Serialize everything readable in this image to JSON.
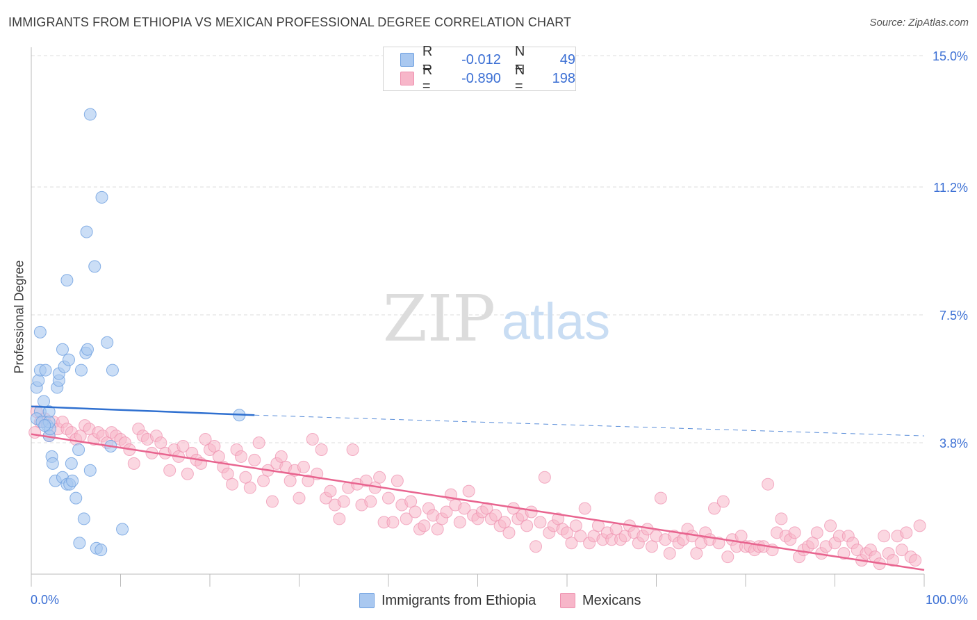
{
  "title": "IMMIGRANTS FROM ETHIOPIA VS MEXICAN PROFESSIONAL DEGREE CORRELATION CHART",
  "source": "Source: ZipAtlas.com",
  "watermark": {
    "zip": "ZIP",
    "atlas": "atlas"
  },
  "legend_top": {
    "r_label": "R =",
    "n_label": "N =",
    "series": [
      {
        "name": "Immigrants from Ethiopia",
        "r": "-0.012",
        "n": "49"
      },
      {
        "name": "Mexicans",
        "r": "-0.890",
        "n": "198"
      }
    ]
  },
  "colors": {
    "ethiopia_fill": "#a9c8f0",
    "ethiopia_stroke": "#6d9fe0",
    "ethiopia_line": "#2f70d0",
    "mexican_fill": "#f7b6c9",
    "mexican_stroke": "#ee8fae",
    "mexican_line": "#e8648f",
    "axis_value": "#3b6fd4",
    "grid": "#dddddd"
  },
  "chart_data": {
    "type": "scatter",
    "title": "IMMIGRANTS FROM ETHIOPIA VS MEXICAN PROFESSIONAL DEGREE CORRELATION CHART",
    "xlabel": "",
    "ylabel": "Professional Degree",
    "xlim": [
      0,
      100
    ],
    "ylim": [
      0,
      15.0
    ],
    "x_tick_labels": [
      "0.0%",
      "100.0%"
    ],
    "y_ticks": [
      3.8,
      7.5,
      11.2,
      15.0
    ],
    "y_tick_labels": [
      "3.8%",
      "7.5%",
      "11.2%",
      "15.0%"
    ],
    "series": [
      {
        "name": "Immigrants from Ethiopia",
        "r": -0.012,
        "n": 49,
        "trend": {
          "x0": 0,
          "y0": 4.85,
          "x1": 25,
          "y1": 4.6,
          "dash_x_end": 100,
          "dash_y_end": 4.0
        },
        "points": [
          [
            1.0,
            4.7
          ],
          [
            0.6,
            5.4
          ],
          [
            0.8,
            5.6
          ],
          [
            1.0,
            5.9
          ],
          [
            1.4,
            5.0
          ],
          [
            1.6,
            5.9
          ],
          [
            1.8,
            4.3
          ],
          [
            2.0,
            4.7
          ],
          [
            2.0,
            4.0
          ],
          [
            2.1,
            4.2
          ],
          [
            2.3,
            3.4
          ],
          [
            2.4,
            3.2
          ],
          [
            2.7,
            2.7
          ],
          [
            2.9,
            5.4
          ],
          [
            3.1,
            5.6
          ],
          [
            3.1,
            5.8
          ],
          [
            3.5,
            6.5
          ],
          [
            3.5,
            2.8
          ],
          [
            3.7,
            6.0
          ],
          [
            4.0,
            2.6
          ],
          [
            4.2,
            6.2
          ],
          [
            4.3,
            2.6
          ],
          [
            4.5,
            3.2
          ],
          [
            4.6,
            2.7
          ],
          [
            5.0,
            2.2
          ],
          [
            5.3,
            3.6
          ],
          [
            5.4,
            0.9
          ],
          [
            5.6,
            5.9
          ],
          [
            5.9,
            1.6
          ],
          [
            6.1,
            6.4
          ],
          [
            6.3,
            6.5
          ],
          [
            6.6,
            3.0
          ],
          [
            7.3,
            0.75
          ],
          [
            7.8,
            0.7
          ],
          [
            8.5,
            6.7
          ],
          [
            8.9,
            3.7
          ],
          [
            9.1,
            5.9
          ],
          [
            10.2,
            1.3
          ],
          [
            1.0,
            7.0
          ],
          [
            4.0,
            8.5
          ],
          [
            6.2,
            9.9
          ],
          [
            7.1,
            8.9
          ],
          [
            7.9,
            10.9
          ],
          [
            6.6,
            13.3
          ],
          [
            0.6,
            4.5
          ],
          [
            1.2,
            4.4
          ],
          [
            2.0,
            4.4
          ],
          [
            1.5,
            4.3
          ],
          [
            23.3,
            4.6
          ]
        ]
      },
      {
        "name": "Mexicans",
        "r": -0.89,
        "n": 198,
        "trend": {
          "x0": 0,
          "y0": 4.05,
          "x1": 100,
          "y1": 0.12
        },
        "points": [
          [
            0.4,
            4.1
          ],
          [
            0.6,
            4.7
          ],
          [
            1.0,
            4.4
          ],
          [
            1.5,
            4.5
          ],
          [
            2.0,
            4.0
          ],
          [
            2.5,
            4.4
          ],
          [
            3.0,
            4.2
          ],
          [
            3.5,
            4.4
          ],
          [
            4.0,
            4.2
          ],
          [
            4.5,
            4.1
          ],
          [
            5.0,
            3.9
          ],
          [
            5.5,
            4.0
          ],
          [
            6.0,
            4.3
          ],
          [
            6.5,
            4.2
          ],
          [
            7.0,
            3.9
          ],
          [
            7.5,
            4.1
          ],
          [
            8.0,
            4.0
          ],
          [
            8.5,
            3.8
          ],
          [
            9.0,
            4.1
          ],
          [
            9.5,
            4.0
          ],
          [
            10.0,
            3.9
          ],
          [
            10.5,
            3.8
          ],
          [
            11.0,
            3.6
          ],
          [
            11.5,
            3.2
          ],
          [
            12.0,
            4.2
          ],
          [
            12.5,
            4.0
          ],
          [
            13.0,
            3.9
          ],
          [
            13.5,
            3.5
          ],
          [
            14.0,
            4.0
          ],
          [
            14.5,
            3.8
          ],
          [
            15.0,
            3.5
          ],
          [
            15.5,
            3.0
          ],
          [
            16.0,
            3.6
          ],
          [
            16.5,
            3.4
          ],
          [
            17.0,
            3.7
          ],
          [
            17.5,
            2.9
          ],
          [
            18.0,
            3.5
          ],
          [
            18.5,
            3.3
          ],
          [
            19.0,
            3.2
          ],
          [
            19.5,
            3.9
          ],
          [
            20.0,
            3.6
          ],
          [
            20.5,
            3.7
          ],
          [
            21.0,
            3.4
          ],
          [
            21.5,
            3.1
          ],
          [
            22.0,
            2.9
          ],
          [
            22.5,
            2.6
          ],
          [
            23.0,
            3.6
          ],
          [
            23.5,
            3.4
          ],
          [
            24.0,
            2.8
          ],
          [
            24.5,
            2.5
          ],
          [
            25.0,
            3.3
          ],
          [
            25.5,
            3.8
          ],
          [
            26.0,
            2.7
          ],
          [
            26.5,
            3.0
          ],
          [
            27.0,
            2.1
          ],
          [
            27.5,
            3.2
          ],
          [
            28.0,
            3.4
          ],
          [
            28.5,
            3.1
          ],
          [
            29.0,
            2.7
          ],
          [
            29.5,
            3.0
          ],
          [
            30.0,
            2.2
          ],
          [
            30.5,
            3.1
          ],
          [
            31.0,
            2.7
          ],
          [
            31.5,
            3.9
          ],
          [
            32.0,
            2.9
          ],
          [
            32.5,
            3.6
          ],
          [
            33.0,
            2.2
          ],
          [
            33.5,
            2.4
          ],
          [
            34.0,
            2.0
          ],
          [
            34.5,
            1.6
          ],
          [
            35.0,
            2.1
          ],
          [
            35.5,
            2.5
          ],
          [
            36.0,
            3.6
          ],
          [
            36.5,
            2.6
          ],
          [
            37.0,
            2.0
          ],
          [
            37.5,
            2.7
          ],
          [
            38.0,
            2.1
          ],
          [
            38.5,
            2.5
          ],
          [
            39.0,
            2.8
          ],
          [
            39.5,
            1.5
          ],
          [
            40.0,
            2.2
          ],
          [
            40.5,
            1.5
          ],
          [
            41.0,
            2.7
          ],
          [
            41.5,
            2.0
          ],
          [
            42.0,
            1.6
          ],
          [
            42.5,
            2.1
          ],
          [
            43.0,
            1.8
          ],
          [
            43.5,
            1.3
          ],
          [
            44.0,
            1.4
          ],
          [
            44.5,
            1.9
          ],
          [
            45.0,
            1.7
          ],
          [
            45.5,
            1.3
          ],
          [
            46.0,
            1.6
          ],
          [
            46.5,
            1.8
          ],
          [
            47.0,
            2.3
          ],
          [
            47.5,
            2.0
          ],
          [
            48.0,
            1.5
          ],
          [
            48.5,
            1.9
          ],
          [
            49.0,
            2.4
          ],
          [
            49.5,
            1.7
          ],
          [
            50.0,
            1.6
          ],
          [
            50.5,
            1.8
          ],
          [
            51.0,
            1.9
          ],
          [
            51.5,
            1.6
          ],
          [
            52.0,
            1.7
          ],
          [
            52.5,
            1.4
          ],
          [
            53.0,
            1.5
          ],
          [
            53.5,
            1.2
          ],
          [
            54.0,
            1.9
          ],
          [
            54.5,
            1.6
          ],
          [
            55.0,
            1.7
          ],
          [
            55.5,
            1.4
          ],
          [
            56.0,
            1.8
          ],
          [
            56.5,
            0.8
          ],
          [
            57.0,
            1.5
          ],
          [
            57.5,
            2.8
          ],
          [
            58.0,
            1.2
          ],
          [
            58.5,
            1.4
          ],
          [
            59.0,
            1.6
          ],
          [
            59.5,
            1.3
          ],
          [
            60.0,
            1.2
          ],
          [
            60.5,
            0.9
          ],
          [
            61.0,
            1.4
          ],
          [
            61.5,
            1.1
          ],
          [
            62.0,
            1.9
          ],
          [
            62.5,
            0.9
          ],
          [
            63.0,
            1.1
          ],
          [
            63.5,
            1.4
          ],
          [
            64.0,
            1.0
          ],
          [
            64.5,
            1.2
          ],
          [
            65.0,
            1.0
          ],
          [
            65.5,
            1.3
          ],
          [
            66.0,
            1.0
          ],
          [
            66.5,
            1.1
          ],
          [
            67.0,
            1.4
          ],
          [
            67.5,
            1.2
          ],
          [
            68.0,
            0.9
          ],
          [
            68.5,
            1.1
          ],
          [
            69.0,
            1.3
          ],
          [
            69.5,
            0.8
          ],
          [
            70.0,
            1.1
          ],
          [
            70.5,
            2.2
          ],
          [
            71.0,
            1.0
          ],
          [
            71.5,
            0.6
          ],
          [
            72.0,
            1.1
          ],
          [
            72.5,
            0.9
          ],
          [
            73.0,
            1.0
          ],
          [
            73.5,
            1.3
          ],
          [
            74.0,
            1.1
          ],
          [
            74.5,
            0.6
          ],
          [
            75.0,
            0.9
          ],
          [
            75.5,
            1.2
          ],
          [
            76.0,
            1.0
          ],
          [
            76.5,
            1.9
          ],
          [
            77.0,
            0.9
          ],
          [
            77.5,
            2.1
          ],
          [
            78.0,
            0.5
          ],
          [
            78.5,
            1.0
          ],
          [
            79.0,
            0.8
          ],
          [
            79.5,
            1.1
          ],
          [
            80.0,
            0.8
          ],
          [
            80.5,
            0.8
          ],
          [
            81.0,
            0.7
          ],
          [
            81.5,
            0.8
          ],
          [
            82.0,
            0.8
          ],
          [
            82.5,
            2.6
          ],
          [
            83.0,
            0.7
          ],
          [
            83.5,
            1.2
          ],
          [
            84.0,
            1.6
          ],
          [
            84.5,
            1.1
          ],
          [
            85.0,
            1.0
          ],
          [
            85.5,
            1.2
          ],
          [
            86.0,
            0.5
          ],
          [
            86.5,
            0.7
          ],
          [
            87.0,
            0.8
          ],
          [
            87.5,
            0.9
          ],
          [
            88.0,
            1.2
          ],
          [
            88.5,
            0.6
          ],
          [
            89.0,
            0.8
          ],
          [
            89.5,
            1.4
          ],
          [
            90.0,
            0.9
          ],
          [
            90.5,
            1.1
          ],
          [
            91.0,
            0.6
          ],
          [
            91.5,
            1.1
          ],
          [
            92.0,
            0.9
          ],
          [
            92.5,
            0.7
          ],
          [
            93.0,
            0.4
          ],
          [
            93.5,
            0.6
          ],
          [
            94.0,
            0.7
          ],
          [
            94.5,
            0.5
          ],
          [
            95.0,
            0.3
          ],
          [
            95.5,
            1.1
          ],
          [
            96.0,
            0.6
          ],
          [
            96.5,
            0.4
          ],
          [
            97.0,
            1.1
          ],
          [
            97.5,
            0.7
          ],
          [
            98.0,
            1.2
          ],
          [
            98.5,
            0.5
          ],
          [
            99.0,
            0.4
          ],
          [
            99.5,
            1.4
          ]
        ]
      }
    ]
  },
  "bottom_legend": [
    "Immigrants from Ethiopia",
    "Mexicans"
  ]
}
